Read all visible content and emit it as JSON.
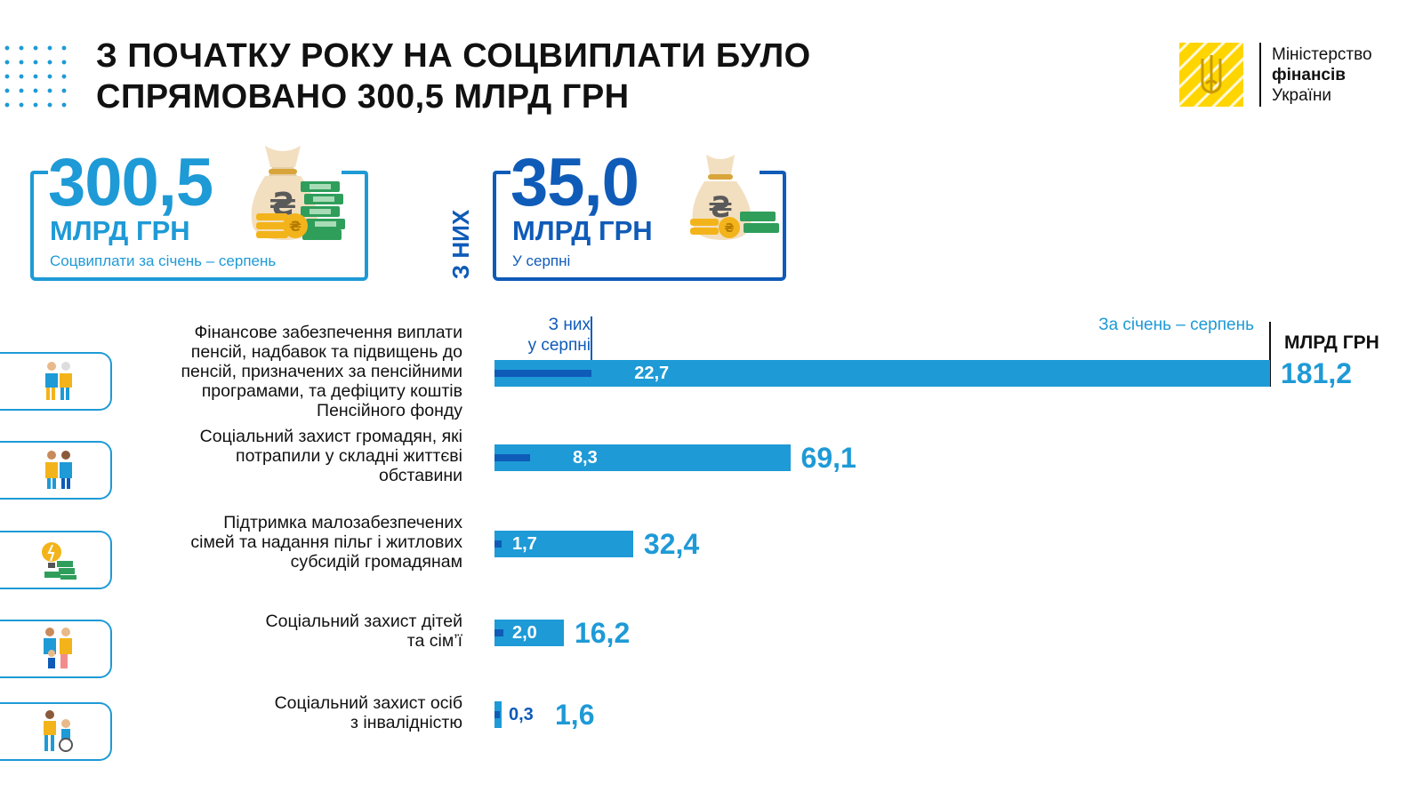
{
  "header": {
    "title_line1": "З ПОЧАТКУ РОКУ НА СОЦВИПЛАТИ БУЛО",
    "title_line2": "СПРЯМОВАНО 300,5 МЛРД ГРН",
    "logo": {
      "line1": "Міністерство",
      "line2": "фінансів",
      "line3": "України",
      "icon": "trident-emblem-icon",
      "color": "#ffd500"
    }
  },
  "summary": {
    "total": {
      "value": "300,5",
      "unit": "МЛРД ГРН",
      "caption": "Соцвиплати за січень – серпень",
      "color": "#1e9ad6",
      "icon": "money-bag-icon"
    },
    "of_them": "З НИХ",
    "august": {
      "value": "35,0",
      "unit": "МЛРД ГРН",
      "caption": "У серпні",
      "color": "#0f5bb8",
      "icon": "money-bag-icon"
    }
  },
  "chart_data": {
    "type": "bar",
    "orientation": "horizontal",
    "unit_label": "МЛРД ГРН",
    "legend": {
      "august": "З них\nу серпні",
      "total": "За січень – серпень"
    },
    "colors": {
      "total": "#1e9ad6",
      "august": "#0f5bb8"
    },
    "categories": [
      "Фінансове забезпечення виплати пенсій, надбавок та підвищень до пенсій, призначених за пенсійними програмами, та дефіциту коштів Пенсійного фонду",
      "Соціальний захист громадян, які потрапили у складні життєві обставини",
      "Підтримка малозабезпечених сімей та надання пільг і житлових субсидій громадянам",
      "Соціальний захист дітей та сім’ї",
      "Соціальний захист осіб з інвалідністю"
    ],
    "series": [
      {
        "name": "За січень – серпень",
        "values": [
          181.2,
          69.1,
          32.4,
          16.2,
          1.6
        ],
        "labels": [
          "181,2",
          "69,1",
          "32,4",
          "16,2",
          "1,6"
        ]
      },
      {
        "name": "З них у серпні",
        "values": [
          22.7,
          8.3,
          1.7,
          2.0,
          0.3
        ],
        "labels": [
          "22,7",
          "8,3",
          "1,7",
          "2,0",
          "0,3"
        ]
      }
    ]
  },
  "rows": [
    {
      "label_lines": [
        "Фінансове забезпечення виплати",
        "пенсій, надбавок та підвищень до",
        "пенсій, призначених за пенсійними",
        "програмами, та дефіциту коштів",
        "Пенсійного фонду"
      ],
      "icon": "elderly-couple-icon"
    },
    {
      "label_lines": [
        "Соціальний захист громадян, які",
        "потрапили у складні життєві",
        "обставини"
      ],
      "icon": "people-support-icon"
    },
    {
      "label_lines": [
        "Підтримка малозабезпечених",
        "сімей та надання пільг і житлових",
        "субсидій громадянам"
      ],
      "icon": "lightbulb-money-icon"
    },
    {
      "label_lines": [
        "Соціальний захист дітей",
        "та сім’ї"
      ],
      "icon": "family-icon"
    },
    {
      "label_lines": [
        "Соціальний захист осіб",
        "з інвалідністю"
      ],
      "icon": "wheelchair-icon"
    }
  ]
}
